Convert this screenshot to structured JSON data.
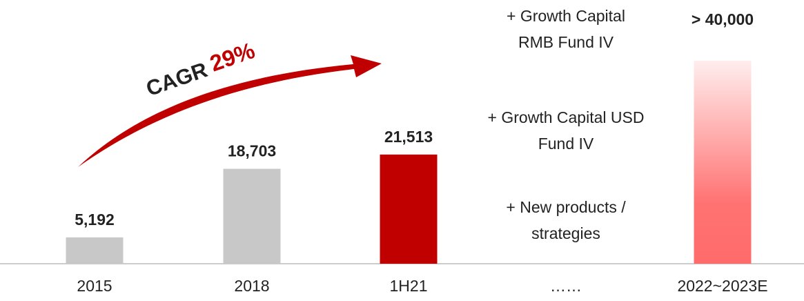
{
  "chart_data": {
    "type": "bar",
    "categories": [
      "2015",
      "2018",
      "1H21",
      "……",
      "2022~2023E"
    ],
    "values": [
      5192,
      18703,
      21513,
      null,
      40000
    ],
    "value_labels": [
      "5,192",
      "18,703",
      "21,513",
      null,
      "> 40,000"
    ],
    "colors": [
      "#c8c8c8",
      "#c8c8c8",
      "#c00000",
      null,
      "#ff6b6b"
    ],
    "fill_styles": [
      "solid",
      "solid",
      "solid",
      null,
      "gradient"
    ],
    "ylim": [
      0,
      54000
    ],
    "annotations": [
      [
        "+ Growth Capital",
        "RMB Fund IV"
      ],
      [
        "+ Growth Capital USD",
        "Fund IV"
      ],
      [
        "+ New products /",
        "strategies"
      ]
    ],
    "cagr_label": "CAGR",
    "cagr_value": "29%"
  }
}
